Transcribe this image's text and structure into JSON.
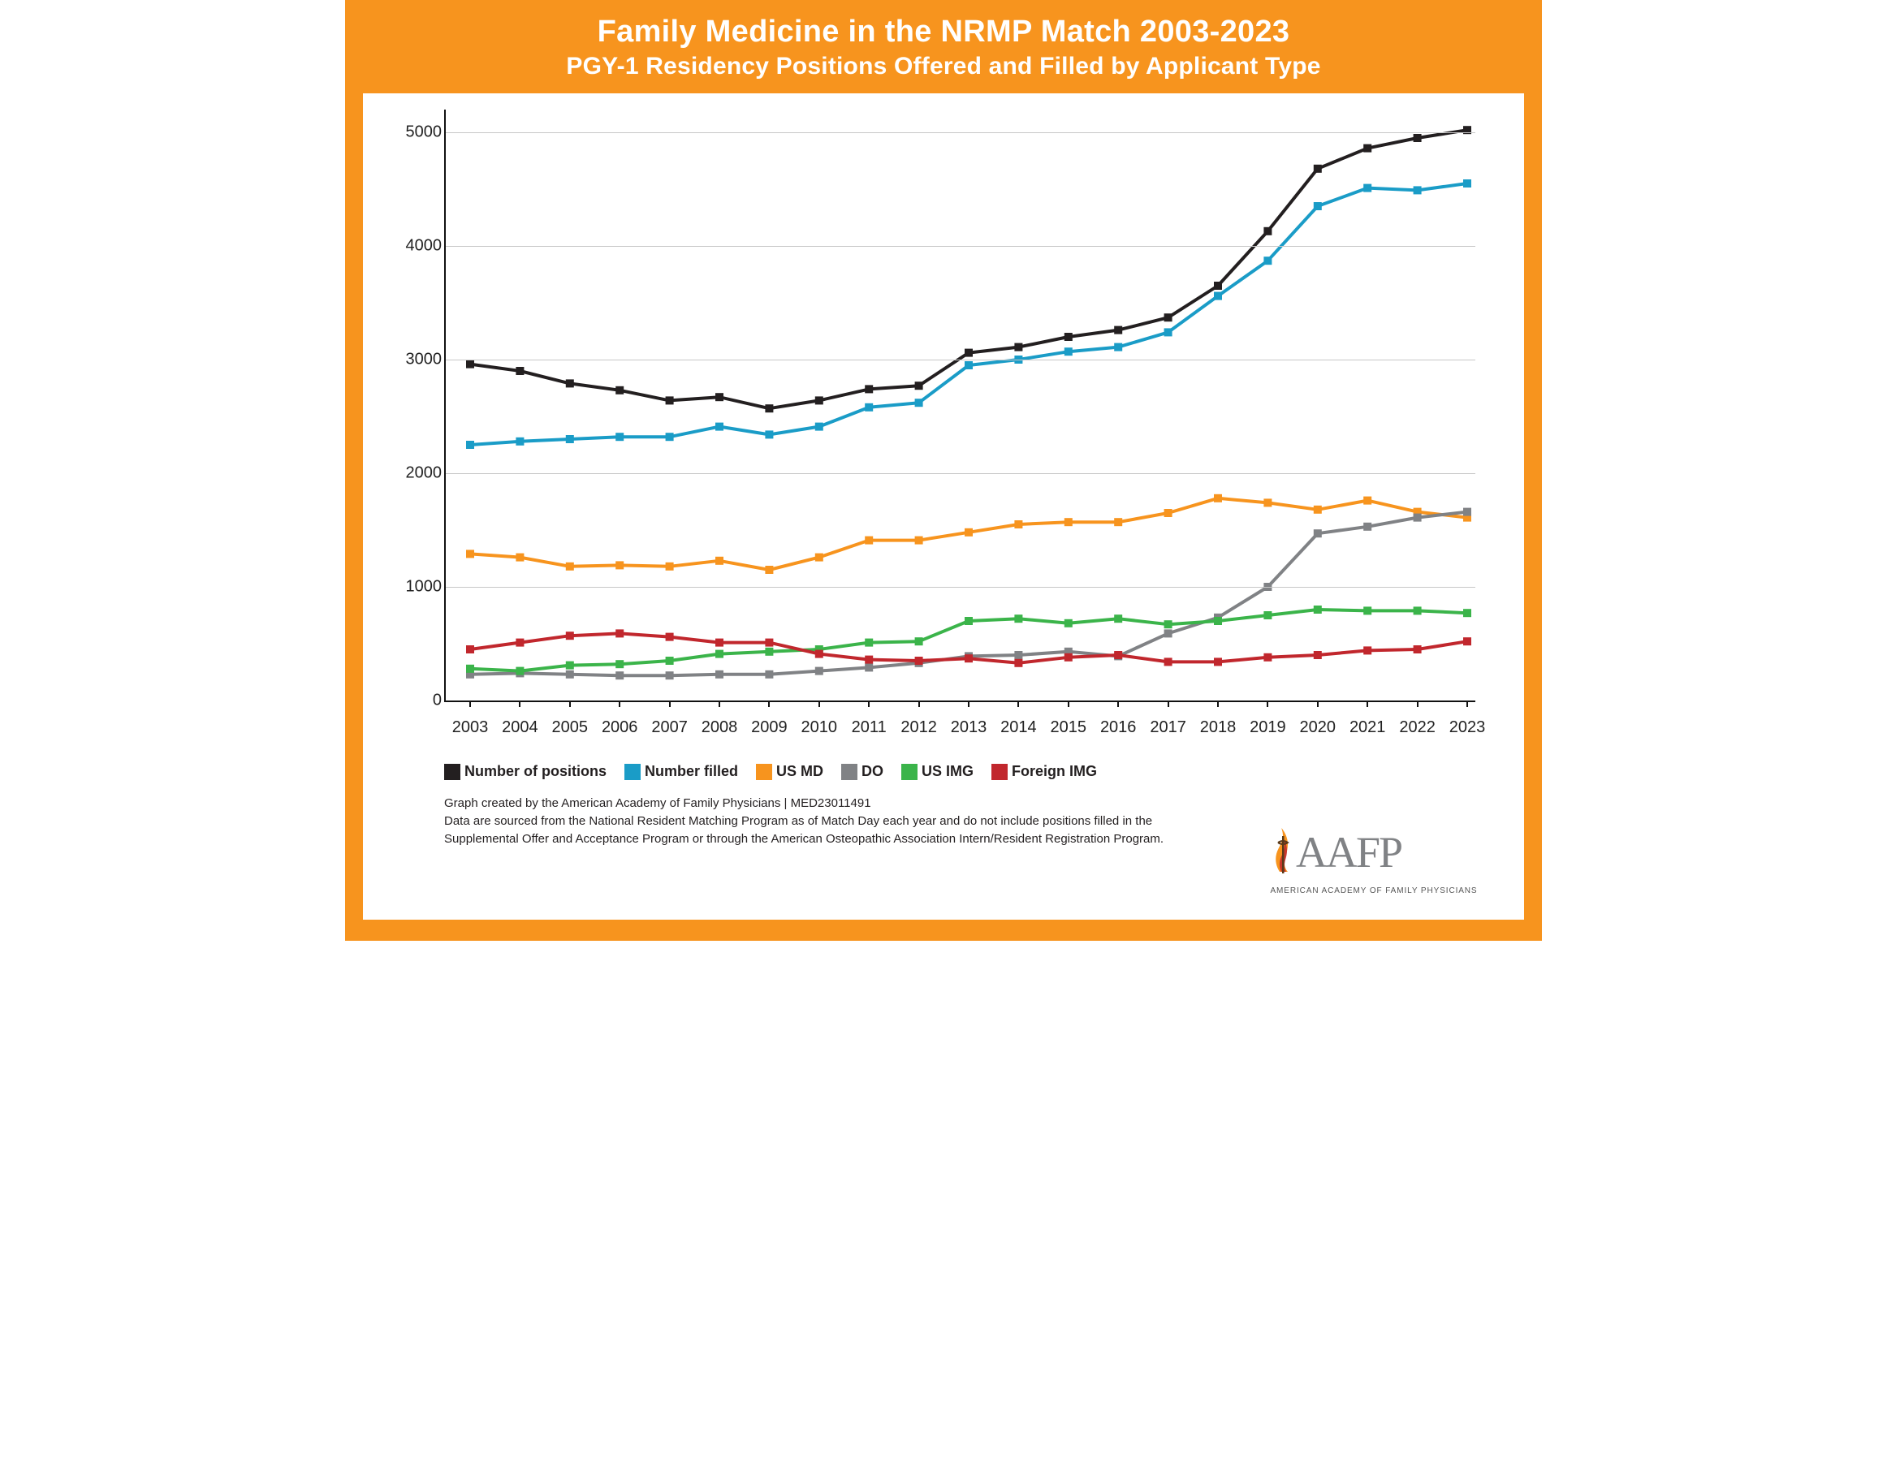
{
  "header": {
    "title": "Family Medicine in the NRMP Match 2003-2023",
    "subtitle": "PGY-1 Residency Positions Offered and Filled by Applicant Type"
  },
  "chart": {
    "type": "line",
    "background_color": "#ffffff",
    "frame_color": "#f7941e",
    "axis_color": "#111111",
    "grid_color": "#c7c7c7",
    "label_fontsize": 20,
    "ylim": [
      0,
      5200
    ],
    "yticks": [
      0,
      1000,
      2000,
      3000,
      4000,
      5000
    ],
    "categories": [
      "2003",
      "2004",
      "2005",
      "2006",
      "2007",
      "2008",
      "2009",
      "2010",
      "2011",
      "2012",
      "2013",
      "2014",
      "2015",
      "2016",
      "2017",
      "2018",
      "2019",
      "2020",
      "2021",
      "2022",
      "2023"
    ],
    "marker_size": 10,
    "line_width": 4,
    "series": [
      {
        "name": "Number of positions",
        "color": "#231f20",
        "marker": "square",
        "values": [
          2960,
          2900,
          2790,
          2730,
          2640,
          2670,
          2570,
          2640,
          2740,
          2770,
          3060,
          3110,
          3200,
          3260,
          3370,
          3650,
          4130,
          4680,
          4860,
          4950,
          5020
        ]
      },
      {
        "name": "Number filled",
        "color": "#1a9cc7",
        "marker": "square",
        "values": [
          2250,
          2280,
          2300,
          2320,
          2320,
          2410,
          2340,
          2410,
          2580,
          2620,
          2950,
          3000,
          3070,
          3110,
          3240,
          3560,
          3870,
          4350,
          4510,
          4490,
          4550
        ]
      },
      {
        "name": "US MD",
        "color": "#f7941e",
        "marker": "square",
        "values": [
          1290,
          1260,
          1180,
          1190,
          1180,
          1230,
          1150,
          1260,
          1410,
          1410,
          1480,
          1550,
          1570,
          1570,
          1650,
          1780,
          1740,
          1680,
          1760,
          1660,
          1610
        ]
      },
      {
        "name": "DO",
        "color": "#808285",
        "marker": "square",
        "values": [
          230,
          240,
          230,
          220,
          220,
          230,
          230,
          260,
          290,
          330,
          390,
          400,
          430,
          390,
          590,
          730,
          1000,
          1470,
          1530,
          1610,
          1660
        ]
      },
      {
        "name": "US IMG",
        "color": "#3bb44a",
        "marker": "square",
        "values": [
          280,
          260,
          310,
          320,
          350,
          410,
          430,
          450,
          510,
          520,
          700,
          720,
          680,
          720,
          670,
          700,
          750,
          800,
          790,
          790,
          770
        ]
      },
      {
        "name": "Foreign IMG",
        "color": "#c1272d",
        "marker": "square",
        "values": [
          450,
          510,
          570,
          590,
          560,
          510,
          510,
          410,
          360,
          350,
          370,
          330,
          380,
          400,
          340,
          340,
          380,
          400,
          440,
          450,
          520
        ]
      }
    ]
  },
  "legend": {
    "items": [
      {
        "label": "Number of positions",
        "color": "#231f20"
      },
      {
        "label": "Number filled",
        "color": "#1a9cc7"
      },
      {
        "label": "US MD",
        "color": "#f7941e"
      },
      {
        "label": "DO",
        "color": "#808285"
      },
      {
        "label": "US IMG",
        "color": "#3bb44a"
      },
      {
        "label": "Foreign IMG",
        "color": "#c1272d"
      }
    ]
  },
  "footer": {
    "credit": "Graph created by the American Academy of Family Physicians | MED23011491",
    "note": "Data are sourced from the National Resident Matching Program as of Match Day each year and  do not include positions filled in the Supplemental Offer and Acceptance Program or through the American Osteopathic Association Intern/Resident Registration Program."
  },
  "logo": {
    "text": "AAFP",
    "subtext": "AMERICAN ACADEMY OF FAMILY PHYSICIANS",
    "flame_color": "#f7941e",
    "text_color": "#808285"
  }
}
